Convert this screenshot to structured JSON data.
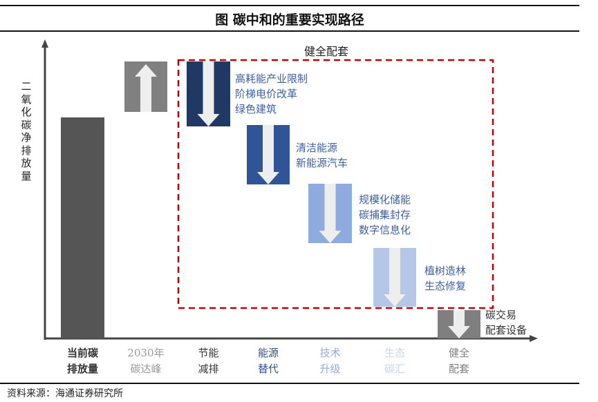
{
  "title": "图  碳中和的重要实现路径",
  "y_axis_label": "二氧化碳净排放量",
  "box_label": "健全配套",
  "bars": [
    {
      "label_line1": "当前碳",
      "label_line2": "排放量",
      "color": "#555555",
      "label_color": "#333333",
      "arrow": "none"
    },
    {
      "label_line1": "2030年",
      "label_line2": "碳达峰",
      "color": "#808080",
      "label_color": "#999999",
      "arrow": "up"
    },
    {
      "label_line1": "节能",
      "label_line2": "减排",
      "color": "#1f3864",
      "label_color": "#333333",
      "arrow": "down",
      "notes": [
        "高耗能产业限制",
        "阶梯电价改革",
        "绿色建筑"
      ]
    },
    {
      "label_line1": "能源",
      "label_line2": "替代",
      "color": "#2f5597",
      "label_color": "#2f4f8f",
      "arrow": "down",
      "notes": [
        "清洁能源",
        "新能源汽车"
      ]
    },
    {
      "label_line1": "技术",
      "label_line2": "升级",
      "color": "#8faadc",
      "label_color": "#8faadc",
      "arrow": "down",
      "notes": [
        "规模化储能",
        "碳捕集封存",
        "数字信息化"
      ]
    },
    {
      "label_line1": "生态",
      "label_line2": "碳汇",
      "color": "#b4c7e7",
      "label_color": "#c5d5ee",
      "arrow": "down",
      "notes": [
        "植树造林",
        "生态修复"
      ]
    },
    {
      "label_line1": "健全",
      "label_line2": "配套",
      "color": "#7f7f7f",
      "label_color": "#808080",
      "arrow": "down",
      "notes": [
        "碳交易",
        "配套设备"
      ]
    }
  ],
  "box_color": "#c00000",
  "source": "资料来源：海通证券研究所"
}
